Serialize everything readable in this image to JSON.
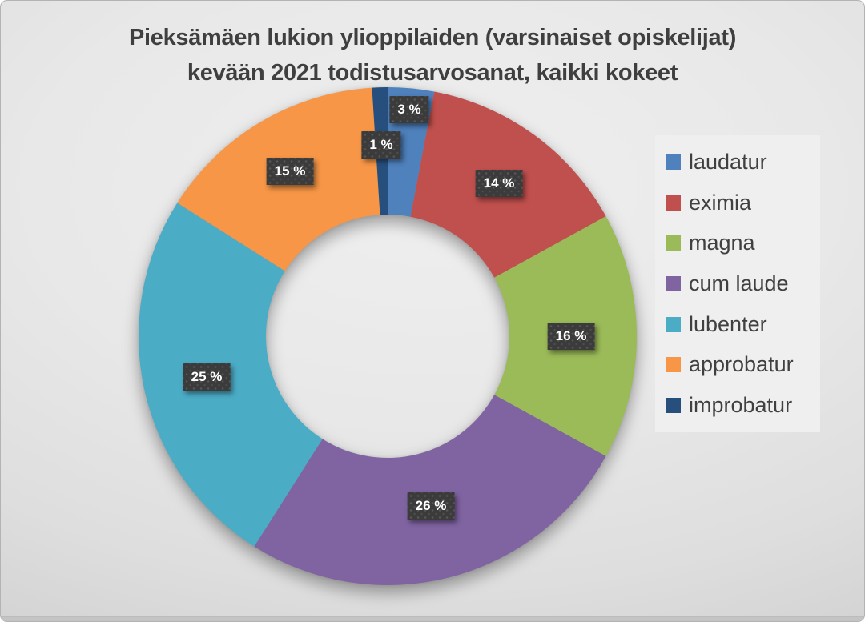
{
  "header": {
    "title_lines": [
      "Pieksämäen lukion ylioppilaiden (varsinaiset opiskelijat)",
      "kevään 2021 todistusarvosanat, kaikki kokeet"
    ]
  },
  "chart_data": {
    "type": "pie",
    "subtype": "donut",
    "title": "Pieksämäen lukion ylioppilaiden (varsinaiset opiskelijat) kevään 2021 todistusarvosanat, kaikki kokeet",
    "unit": "%",
    "categories": [
      "laudatur",
      "eximia",
      "magna",
      "cum laude",
      "lubenter",
      "approbatur",
      "improbatur"
    ],
    "values": [
      3,
      14,
      16,
      26,
      25,
      15,
      1
    ],
    "display_labels": [
      "3 %",
      "14 %",
      "16 %",
      "26 %",
      "25 %",
      "15 %",
      "1 %"
    ],
    "colors": [
      "#4f81bd",
      "#c0504d",
      "#9bbb59",
      "#8064a2",
      "#4bacc6",
      "#f79646",
      "#264f7e"
    ],
    "start_angle_deg": 0,
    "direction": "clockwise",
    "legend_position": "right",
    "label_style": {
      "box_color": "#3b3b3b",
      "text_color": "#ffffff"
    },
    "title_color": "#3f3f3f",
    "legend_text_color": "#404040"
  }
}
